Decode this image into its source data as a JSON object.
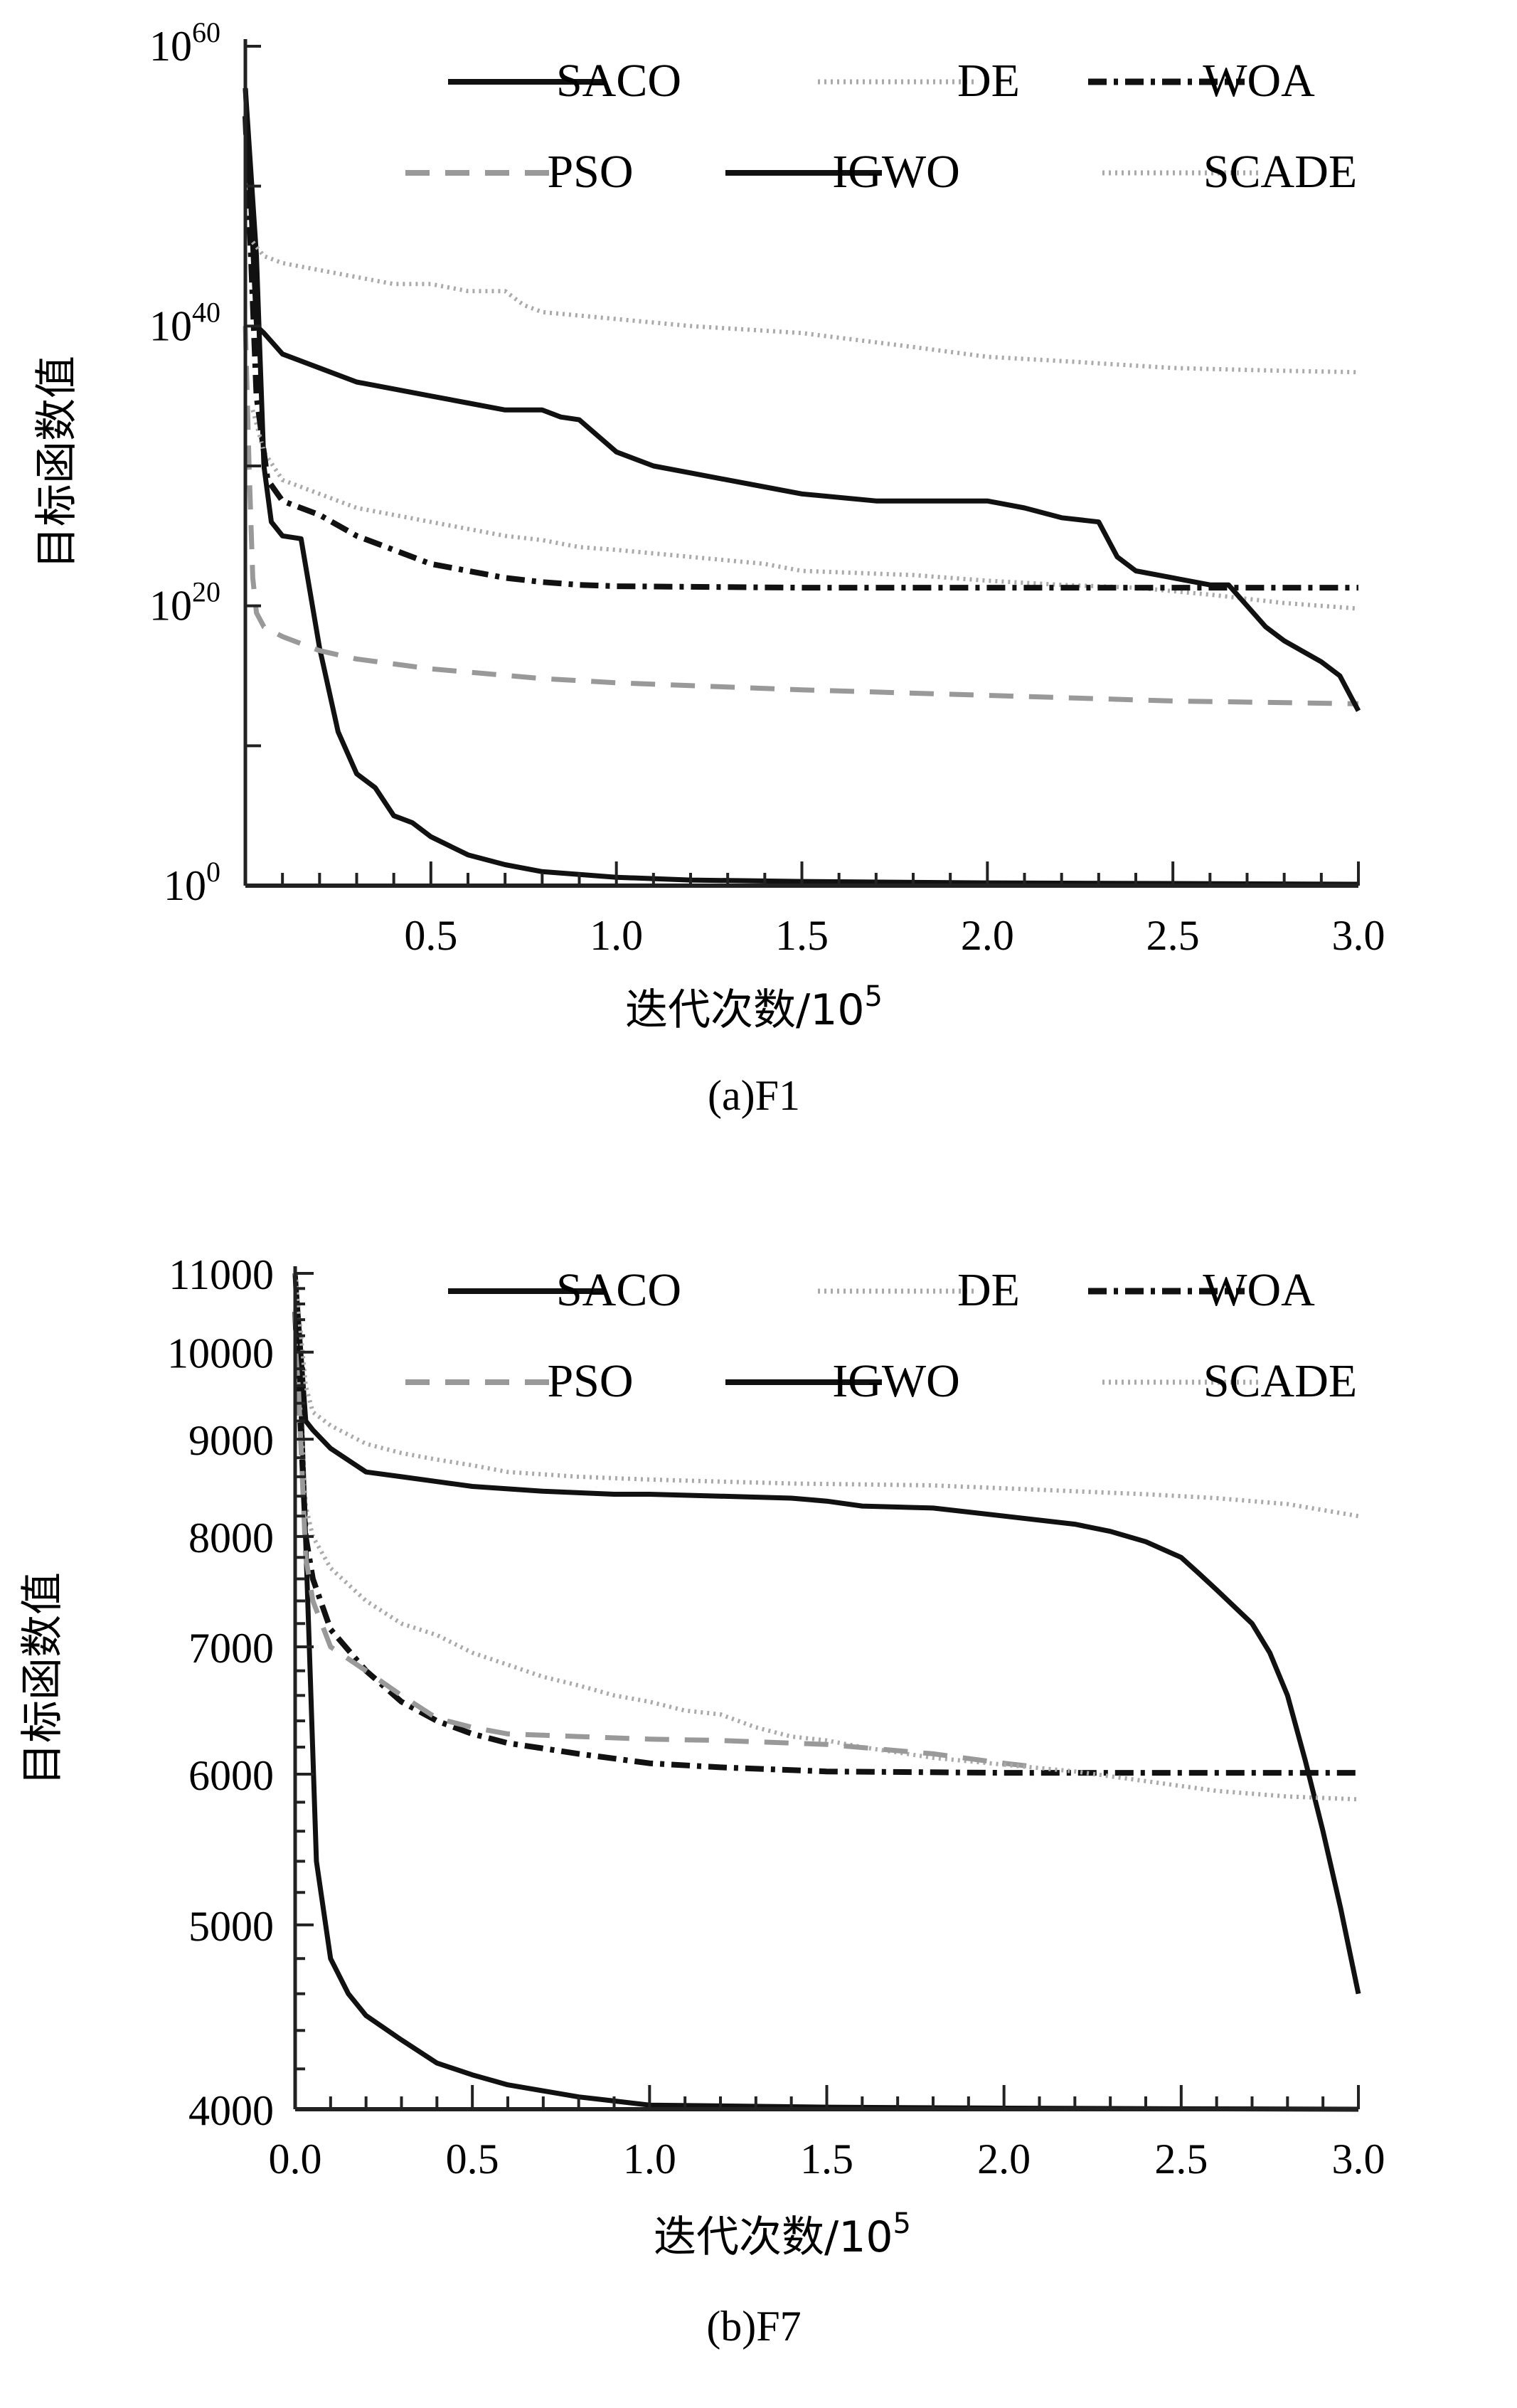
{
  "chart_data": [
    {
      "type": "line",
      "id": "F1",
      "caption": "(a)F1",
      "xlabel": "迭代次数/10",
      "xlabel_sup": "5",
      "ylabel": "目标函数值",
      "yscale": "log",
      "xlim": [
        0,
        3.0
      ],
      "ylim_exponent": [
        0,
        60
      ],
      "x_ticks": [
        "0.5",
        "1.0",
        "1.5",
        "2.0",
        "2.5",
        "3.0"
      ],
      "x_tick_values": [
        0.5,
        1.0,
        1.5,
        2.0,
        2.5,
        3.0
      ],
      "y_ticks": [
        {
          "base": "10",
          "exp": "60",
          "value_exp": 60
        },
        {
          "base": "10",
          "exp": "40",
          "value_exp": 40
        },
        {
          "base": "10",
          "exp": "20",
          "value_exp": 20
        },
        {
          "base": "10",
          "exp": "0",
          "value_exp": 0
        }
      ],
      "legend": {
        "placement": "top-right",
        "entries": [
          "SACO",
          "DE",
          "WOA",
          "PSO",
          "IGWO",
          "SCADE"
        ]
      },
      "series": [
        {
          "name": "SACO",
          "style": "solid",
          "color": "#111111",
          "x": [
            0.0,
            0.03,
            0.05,
            0.07,
            0.1,
            0.15,
            0.2,
            0.25,
            0.3,
            0.35,
            0.4,
            0.45,
            0.5,
            0.6,
            0.7,
            0.8,
            0.9,
            1.0,
            1.2,
            1.5,
            2.0,
            2.5,
            3.0
          ],
          "y_exp": [
            57,
            45,
            30,
            26,
            25,
            24.8,
            17,
            11,
            8,
            7,
            5,
            4.5,
            3.5,
            2.2,
            1.5,
            1.0,
            0.8,
            0.6,
            0.4,
            0.3,
            0.2,
            0.15,
            0.1
          ]
        },
        {
          "name": "DE",
          "style": "dotted",
          "color": "#aaaaaa",
          "x": [
            0.02,
            0.05,
            0.1,
            0.2,
            0.3,
            0.4,
            0.5,
            0.6,
            0.7,
            0.8,
            0.9,
            1.0,
            1.2,
            1.4,
            1.5,
            1.8,
            2.0,
            2.2,
            2.4,
            2.6,
            2.8,
            3.0
          ],
          "y_exp": [
            34,
            31,
            29,
            28,
            27,
            26.5,
            26,
            25.5,
            25,
            24.7,
            24.2,
            24,
            23.5,
            23,
            22.5,
            22.2,
            21.8,
            21.5,
            21.3,
            20.8,
            20.2,
            19.8
          ]
        },
        {
          "name": "WOA",
          "style": "dashdot",
          "color": "#111111",
          "x": [
            0.0,
            0.03,
            0.06,
            0.1,
            0.2,
            0.3,
            0.4,
            0.5,
            0.6,
            0.7,
            0.8,
            0.9,
            1.0,
            1.5,
            2.0,
            2.5,
            3.0
          ],
          "y_exp": [
            55,
            35,
            29,
            27.5,
            26.5,
            25,
            24,
            23,
            22.5,
            22,
            21.7,
            21.5,
            21.4,
            21.3,
            21.3,
            21.3,
            21.3
          ]
        },
        {
          "name": "PSO",
          "style": "dashed",
          "color": "#999999",
          "x": [
            0.0,
            0.01,
            0.02,
            0.03,
            0.05,
            0.1,
            0.2,
            0.3,
            0.5,
            0.8,
            1.0,
            1.5,
            2.0,
            2.5,
            3.0
          ],
          "y_exp": [
            40,
            30,
            22,
            19.5,
            18.5,
            17.8,
            16.8,
            16.2,
            15.5,
            14.8,
            14.5,
            14.0,
            13.6,
            13.2,
            13.0
          ]
        },
        {
          "name": "IGWO",
          "style": "solid",
          "color": "#111111",
          "x": [
            0.0,
            0.03,
            0.05,
            0.1,
            0.2,
            0.3,
            0.4,
            0.5,
            0.6,
            0.7,
            0.8,
            0.85,
            0.9,
            1.0,
            1.1,
            1.2,
            1.3,
            1.4,
            1.5,
            1.7,
            1.8,
            2.0,
            2.1,
            2.2,
            2.3,
            2.35,
            2.4,
            2.5,
            2.6,
            2.65,
            2.7,
            2.75,
            2.8,
            2.9,
            2.95,
            3.0
          ],
          "y_exp": [
            57,
            40,
            39.5,
            38,
            37,
            36,
            35.5,
            35,
            34.5,
            34,
            34,
            33.5,
            33.3,
            31,
            30,
            29.5,
            29,
            28.5,
            28,
            27.5,
            27.5,
            27.5,
            27,
            26.3,
            26,
            23.5,
            22.5,
            22,
            21.5,
            21.5,
            20,
            18.5,
            17.5,
            16,
            15,
            12.5
          ]
        },
        {
          "name": "SCADE",
          "style": "dotted",
          "color": "#aaaaaa",
          "x": [
            0.02,
            0.05,
            0.1,
            0.2,
            0.3,
            0.4,
            0.5,
            0.6,
            0.7,
            0.75,
            0.8,
            1.0,
            1.2,
            1.5,
            1.8,
            2.0,
            2.2,
            2.5,
            2.8,
            3.0
          ],
          "y_exp": [
            46,
            45,
            44.5,
            44,
            43.5,
            43,
            43,
            42.5,
            42.5,
            41.5,
            41,
            40.5,
            40,
            39.5,
            38.5,
            37.8,
            37.5,
            37,
            36.8,
            36.7
          ]
        }
      ]
    },
    {
      "type": "line",
      "id": "F7",
      "caption": "(b)F7",
      "xlabel": "迭代次数/10",
      "xlabel_sup": "5",
      "ylabel": "目标函数值",
      "yscale": "log",
      "xlim": [
        0,
        3.0
      ],
      "ylim": [
        4000,
        11000
      ],
      "x_ticks": [
        "0.0",
        "0.5",
        "1.0",
        "1.5",
        "2.0",
        "2.5",
        "3.0"
      ],
      "x_tick_values": [
        0.0,
        0.5,
        1.0,
        1.5,
        2.0,
        2.5,
        3.0
      ],
      "y_ticks": [
        "11000",
        "10000",
        "9000",
        "8000",
        "7000",
        "6000",
        "5000",
        "4000"
      ],
      "y_tick_values": [
        11000,
        10000,
        9000,
        8000,
        7000,
        6000,
        5000,
        4000
      ],
      "legend": {
        "placement": "top-right",
        "entries": [
          "SACO",
          "DE",
          "WOA",
          "PSO",
          "IGWO",
          "SCADE"
        ]
      },
      "series": [
        {
          "name": "SACO",
          "style": "solid",
          "color": "#111111",
          "x": [
            0.0,
            0.02,
            0.04,
            0.06,
            0.1,
            0.15,
            0.2,
            0.3,
            0.4,
            0.5,
            0.6,
            0.7,
            0.8,
            0.9,
            1.0,
            1.5,
            2.0,
            2.5,
            3.0
          ],
          "y": [
            11000,
            9000,
            7000,
            5400,
            4800,
            4600,
            4480,
            4350,
            4230,
            4170,
            4120,
            4090,
            4060,
            4040,
            4020,
            4010,
            4005,
            4002,
            4000
          ]
        },
        {
          "name": "DE",
          "style": "dotted",
          "color": "#aaaaaa",
          "x": [
            0.0,
            0.03,
            0.05,
            0.1,
            0.2,
            0.3,
            0.4,
            0.5,
            0.6,
            0.7,
            0.8,
            0.9,
            1.0,
            1.1,
            1.2,
            1.3,
            1.4,
            1.5,
            1.6,
            1.8,
            2.0
          ],
          "y": [
            10500,
            8300,
            8000,
            7700,
            7400,
            7200,
            7100,
            6950,
            6850,
            6750,
            6680,
            6600,
            6550,
            6480,
            6450,
            6350,
            6280,
            6250,
            6200,
            6120,
            6070
          ]
        },
        {
          "name": "WOA",
          "style": "dashdot",
          "color": "#111111",
          "x": [
            0.0,
            0.03,
            0.05,
            0.1,
            0.2,
            0.3,
            0.4,
            0.5,
            0.6,
            0.8,
            1.0,
            1.2,
            1.5,
            2.0,
            2.5,
            3.0
          ],
          "y": [
            10500,
            8000,
            7600,
            7150,
            6800,
            6550,
            6400,
            6300,
            6230,
            6150,
            6080,
            6050,
            6020,
            6010,
            6010,
            6010
          ]
        },
        {
          "name": "PSO",
          "style": "dashed",
          "color": "#999999",
          "x": [
            0.0,
            0.03,
            0.05,
            0.1,
            0.2,
            0.3,
            0.4,
            0.5,
            0.6,
            0.8,
            1.0,
            1.2,
            1.5,
            1.8,
            2.0,
            2.1
          ],
          "y": [
            10500,
            7800,
            7400,
            7000,
            6800,
            6600,
            6420,
            6350,
            6300,
            6280,
            6260,
            6250,
            6220,
            6150,
            6080,
            6050
          ]
        },
        {
          "name": "IGWO",
          "style": "solid",
          "color": "#111111",
          "x": [
            0.0,
            0.03,
            0.05,
            0.1,
            0.2,
            0.3,
            0.4,
            0.5,
            0.7,
            0.9,
            1.0,
            1.2,
            1.4,
            1.5,
            1.6,
            1.8,
            2.0,
            2.2,
            2.3,
            2.4,
            2.5,
            2.55,
            2.6,
            2.7,
            2.75,
            2.8,
            2.85,
            2.9,
            2.95,
            3.0
          ],
          "y": [
            11000,
            9200,
            9100,
            8900,
            8650,
            8600,
            8550,
            8500,
            8450,
            8420,
            8420,
            8400,
            8380,
            8350,
            8300,
            8280,
            8200,
            8120,
            8050,
            7950,
            7800,
            7650,
            7500,
            7200,
            6950,
            6600,
            6100,
            5600,
            5100,
            4600
          ]
        },
        {
          "name": "SCADE",
          "style": "dotted",
          "color": "#aaaaaa",
          "x": [
            0.0,
            0.03,
            0.05,
            0.1,
            0.2,
            0.3,
            0.4,
            0.5,
            0.6,
            0.8,
            1.0,
            1.2,
            1.4,
            1.6,
            1.8,
            2.0,
            2.2,
            2.4,
            2.6,
            2.8,
            3.0
          ],
          "y": [
            11000,
            9600,
            9300,
            9150,
            8950,
            8850,
            8780,
            8720,
            8650,
            8600,
            8570,
            8550,
            8530,
            8520,
            8510,
            8480,
            8450,
            8420,
            8380,
            8320,
            8200
          ]
        },
        {
          "name": "DE-tail",
          "style": "dotted",
          "color": "#aaaaaa",
          "legend": false,
          "x": [
            2.0,
            2.2,
            2.4,
            2.6,
            2.8,
            3.0
          ],
          "y": [
            6070,
            6020,
            5950,
            5880,
            5840,
            5820
          ]
        }
      ]
    }
  ]
}
